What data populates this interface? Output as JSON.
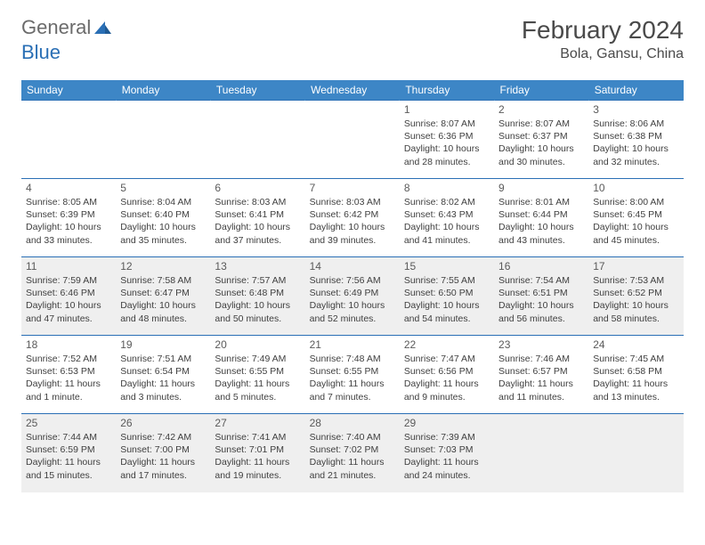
{
  "logo": {
    "general": "General",
    "blue": "Blue"
  },
  "title": "February 2024",
  "location": "Bola, Gansu, China",
  "colors": {
    "header_bg": "#3d86c6",
    "header_text": "#ffffff",
    "border": "#2a6fb5",
    "shaded_bg": "#efefef",
    "text": "#404040",
    "logo_gray": "#6b6b6b",
    "logo_blue": "#2a6fb5"
  },
  "weekdays": [
    "Sunday",
    "Monday",
    "Tuesday",
    "Wednesday",
    "Thursday",
    "Friday",
    "Saturday"
  ],
  "weeks": [
    [
      null,
      null,
      null,
      null,
      {
        "n": "1",
        "sr": "Sunrise: 8:07 AM",
        "ss": "Sunset: 6:36 PM",
        "d1": "Daylight: 10 hours",
        "d2": "and 28 minutes."
      },
      {
        "n": "2",
        "sr": "Sunrise: 8:07 AM",
        "ss": "Sunset: 6:37 PM",
        "d1": "Daylight: 10 hours",
        "d2": "and 30 minutes."
      },
      {
        "n": "3",
        "sr": "Sunrise: 8:06 AM",
        "ss": "Sunset: 6:38 PM",
        "d1": "Daylight: 10 hours",
        "d2": "and 32 minutes."
      }
    ],
    [
      {
        "n": "4",
        "sr": "Sunrise: 8:05 AM",
        "ss": "Sunset: 6:39 PM",
        "d1": "Daylight: 10 hours",
        "d2": "and 33 minutes."
      },
      {
        "n": "5",
        "sr": "Sunrise: 8:04 AM",
        "ss": "Sunset: 6:40 PM",
        "d1": "Daylight: 10 hours",
        "d2": "and 35 minutes."
      },
      {
        "n": "6",
        "sr": "Sunrise: 8:03 AM",
        "ss": "Sunset: 6:41 PM",
        "d1": "Daylight: 10 hours",
        "d2": "and 37 minutes."
      },
      {
        "n": "7",
        "sr": "Sunrise: 8:03 AM",
        "ss": "Sunset: 6:42 PM",
        "d1": "Daylight: 10 hours",
        "d2": "and 39 minutes."
      },
      {
        "n": "8",
        "sr": "Sunrise: 8:02 AM",
        "ss": "Sunset: 6:43 PM",
        "d1": "Daylight: 10 hours",
        "d2": "and 41 minutes."
      },
      {
        "n": "9",
        "sr": "Sunrise: 8:01 AM",
        "ss": "Sunset: 6:44 PM",
        "d1": "Daylight: 10 hours",
        "d2": "and 43 minutes."
      },
      {
        "n": "10",
        "sr": "Sunrise: 8:00 AM",
        "ss": "Sunset: 6:45 PM",
        "d1": "Daylight: 10 hours",
        "d2": "and 45 minutes."
      }
    ],
    [
      {
        "n": "11",
        "sr": "Sunrise: 7:59 AM",
        "ss": "Sunset: 6:46 PM",
        "d1": "Daylight: 10 hours",
        "d2": "and 47 minutes."
      },
      {
        "n": "12",
        "sr": "Sunrise: 7:58 AM",
        "ss": "Sunset: 6:47 PM",
        "d1": "Daylight: 10 hours",
        "d2": "and 48 minutes."
      },
      {
        "n": "13",
        "sr": "Sunrise: 7:57 AM",
        "ss": "Sunset: 6:48 PM",
        "d1": "Daylight: 10 hours",
        "d2": "and 50 minutes."
      },
      {
        "n": "14",
        "sr": "Sunrise: 7:56 AM",
        "ss": "Sunset: 6:49 PM",
        "d1": "Daylight: 10 hours",
        "d2": "and 52 minutes."
      },
      {
        "n": "15",
        "sr": "Sunrise: 7:55 AM",
        "ss": "Sunset: 6:50 PM",
        "d1": "Daylight: 10 hours",
        "d2": "and 54 minutes."
      },
      {
        "n": "16",
        "sr": "Sunrise: 7:54 AM",
        "ss": "Sunset: 6:51 PM",
        "d1": "Daylight: 10 hours",
        "d2": "and 56 minutes."
      },
      {
        "n": "17",
        "sr": "Sunrise: 7:53 AM",
        "ss": "Sunset: 6:52 PM",
        "d1": "Daylight: 10 hours",
        "d2": "and 58 minutes."
      }
    ],
    [
      {
        "n": "18",
        "sr": "Sunrise: 7:52 AM",
        "ss": "Sunset: 6:53 PM",
        "d1": "Daylight: 11 hours",
        "d2": "and 1 minute."
      },
      {
        "n": "19",
        "sr": "Sunrise: 7:51 AM",
        "ss": "Sunset: 6:54 PM",
        "d1": "Daylight: 11 hours",
        "d2": "and 3 minutes."
      },
      {
        "n": "20",
        "sr": "Sunrise: 7:49 AM",
        "ss": "Sunset: 6:55 PM",
        "d1": "Daylight: 11 hours",
        "d2": "and 5 minutes."
      },
      {
        "n": "21",
        "sr": "Sunrise: 7:48 AM",
        "ss": "Sunset: 6:55 PM",
        "d1": "Daylight: 11 hours",
        "d2": "and 7 minutes."
      },
      {
        "n": "22",
        "sr": "Sunrise: 7:47 AM",
        "ss": "Sunset: 6:56 PM",
        "d1": "Daylight: 11 hours",
        "d2": "and 9 minutes."
      },
      {
        "n": "23",
        "sr": "Sunrise: 7:46 AM",
        "ss": "Sunset: 6:57 PM",
        "d1": "Daylight: 11 hours",
        "d2": "and 11 minutes."
      },
      {
        "n": "24",
        "sr": "Sunrise: 7:45 AM",
        "ss": "Sunset: 6:58 PM",
        "d1": "Daylight: 11 hours",
        "d2": "and 13 minutes."
      }
    ],
    [
      {
        "n": "25",
        "sr": "Sunrise: 7:44 AM",
        "ss": "Sunset: 6:59 PM",
        "d1": "Daylight: 11 hours",
        "d2": "and 15 minutes."
      },
      {
        "n": "26",
        "sr": "Sunrise: 7:42 AM",
        "ss": "Sunset: 7:00 PM",
        "d1": "Daylight: 11 hours",
        "d2": "and 17 minutes."
      },
      {
        "n": "27",
        "sr": "Sunrise: 7:41 AM",
        "ss": "Sunset: 7:01 PM",
        "d1": "Daylight: 11 hours",
        "d2": "and 19 minutes."
      },
      {
        "n": "28",
        "sr": "Sunrise: 7:40 AM",
        "ss": "Sunset: 7:02 PM",
        "d1": "Daylight: 11 hours",
        "d2": "and 21 minutes."
      },
      {
        "n": "29",
        "sr": "Sunrise: 7:39 AM",
        "ss": "Sunset: 7:03 PM",
        "d1": "Daylight: 11 hours",
        "d2": "and 24 minutes."
      },
      null,
      null
    ]
  ],
  "shaded_rows": [
    2,
    4
  ]
}
